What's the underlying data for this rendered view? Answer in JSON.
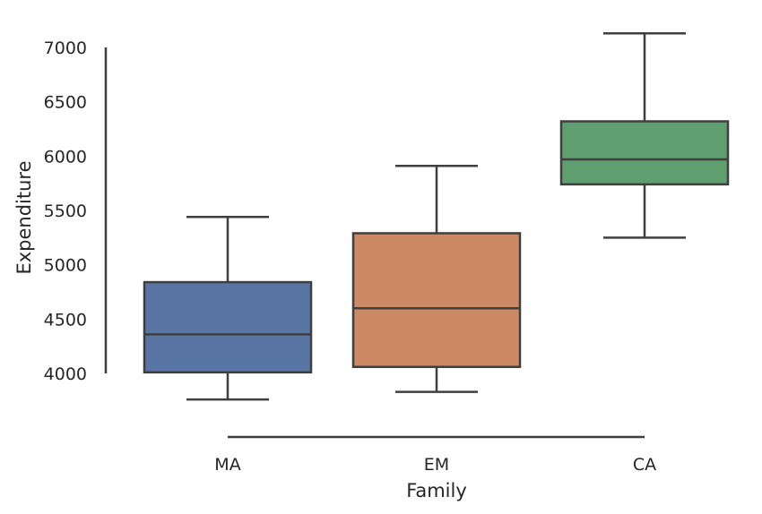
{
  "chart_data": {
    "type": "box",
    "xlabel": "Family",
    "ylabel": "Expenditure",
    "ylim": [
      3750,
      7150
    ],
    "yticks": [
      4000,
      4500,
      5000,
      5500,
      6000,
      6500,
      7000
    ],
    "ytick_labels": [
      "4000",
      "4500",
      "5000",
      "5500",
      "6000",
      "6500",
      "7000"
    ],
    "categories": [
      "MA",
      "EM",
      "CA"
    ],
    "boxes": [
      {
        "category": "MA",
        "whisker_low": 3760,
        "q1": 4010,
        "median": 4360,
        "q3": 4840,
        "whisker_high": 5440,
        "color": "#5875a4"
      },
      {
        "category": "EM",
        "whisker_low": 3830,
        "q1": 4060,
        "median": 4600,
        "q3": 5290,
        "whisker_high": 5910,
        "color": "#cc8963"
      },
      {
        "category": "CA",
        "whisker_low": 5250,
        "q1": 5740,
        "median": 5970,
        "q3": 6320,
        "whisker_high": 7130,
        "color": "#5f9e6e"
      }
    ],
    "grid": false,
    "legend": "none"
  }
}
